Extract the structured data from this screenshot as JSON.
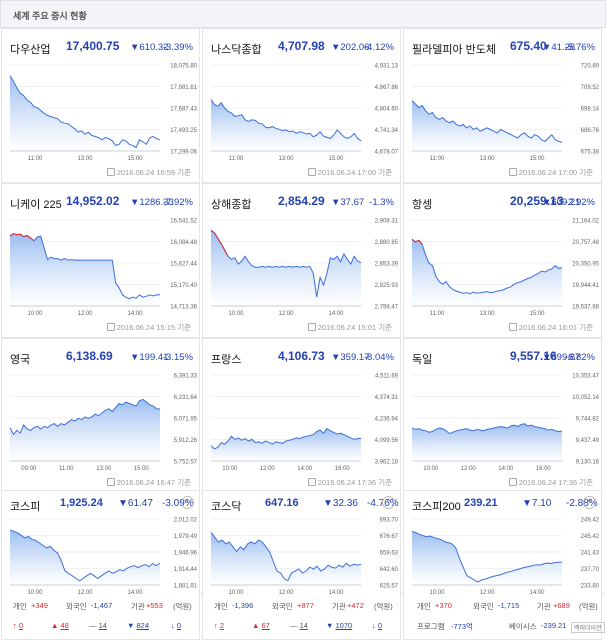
{
  "page_title": "세계 주요 증시 현황",
  "world_indices": [
    {
      "name": "다우산업",
      "price": "17,400.75",
      "change": "▼610.32",
      "rate": "-3.39%",
      "yticks": [
        "18,075.80",
        "17,881.61",
        "17,687.43",
        "17,493.25",
        "17,299.06"
      ],
      "xticks": [
        "11:00",
        "13:00",
        "15:00"
      ],
      "stamp": "2016.06.24 16:59 기준",
      "series": [
        17980,
        17930,
        17870,
        17820,
        17800,
        17760,
        17740,
        17700,
        17690,
        17665,
        17640,
        17620,
        17610,
        17600,
        17590,
        17560,
        17550,
        17545,
        17520,
        17500,
        17470,
        17480,
        17450,
        17470,
        17440,
        17430,
        17420,
        17400,
        17420,
        17410,
        17390,
        17350,
        17360,
        17400,
        17390,
        17360,
        17350,
        17330,
        17400,
        17380,
        17360,
        17420,
        17430,
        17410,
        17400
      ],
      "ylim": [
        17299.06,
        18075.8
      ]
    },
    {
      "name": "나스닥종합",
      "price": "4,707.98",
      "change": "▼202.06",
      "rate": "-4.12%",
      "yticks": [
        "4,931.13",
        "4,867.86",
        "4,804.60",
        "4,741.34",
        "4,678.07"
      ],
      "xticks": [
        "11:00",
        "13:00",
        "15:00"
      ],
      "stamp": "2016.06.24 17:00 기준",
      "series": [
        4830,
        4815,
        4810,
        4820,
        4805,
        4795,
        4790,
        4780,
        4782,
        4785,
        4770,
        4765,
        4770,
        4768,
        4760,
        4758,
        4748,
        4746,
        4750,
        4745,
        4742,
        4738,
        4740,
        4735,
        4737,
        4730,
        4735,
        4732,
        4728,
        4730,
        4720,
        4725,
        4735,
        4722,
        4718,
        4715,
        4725,
        4740,
        4730,
        4720,
        4715,
        4720,
        4730,
        4715,
        4708
      ],
      "ylim": [
        4678.07,
        4931.13
      ]
    },
    {
      "name": "필라델피아 반도체",
      "price": "675.40",
      "change": "▼41.28",
      "rate": "-5.76%",
      "yticks": [
        "720.89",
        "709.52",
        "698.14",
        "686.76",
        "675.38"
      ],
      "xticks": [
        "11:00",
        "13:00",
        "15:00"
      ],
      "stamp": "2016.06.24 17:00 기준",
      "series": [
        700,
        698,
        696,
        697,
        694,
        692,
        693,
        690,
        689,
        690,
        688,
        687,
        688,
        686,
        685,
        686,
        684,
        685,
        683,
        684,
        682,
        683,
        684,
        683,
        682,
        681,
        683,
        682,
        681,
        680,
        679,
        678,
        680,
        681,
        679,
        678,
        680,
        679,
        677,
        676,
        678,
        680,
        677,
        676,
        675.4
      ],
      "ylim": [
        670.35,
        720.89
      ]
    },
    {
      "name": "니케이 225",
      "price": "14,952.02",
      "change": "▼1286.33",
      "rate": "-7.92%",
      "yticks": [
        "16,541.52",
        "16,084.48",
        "15,627.44",
        "15,170.40",
        "14,713.36"
      ],
      "xticks": [
        "10:00",
        "12:00",
        "14:00"
      ],
      "stamp": "2016.06.24 15:15 기준",
      "series": [
        16200,
        16250,
        16230,
        16240,
        16190,
        16210,
        16160,
        16100,
        16180,
        16200,
        15950,
        15700,
        15750,
        15720,
        15720,
        15690,
        15720,
        15690,
        15700,
        15690,
        15690,
        15690,
        15690,
        15690,
        15690,
        15690,
        15690,
        15690,
        15690,
        15690,
        15690,
        15200,
        15100,
        14950,
        14900,
        14870,
        14900,
        14880,
        14950,
        14900,
        14920,
        14950,
        14930,
        14950,
        14952
      ],
      "ylim": [
        14713.36,
        16541.52
      ]
    },
    {
      "name": "상해종합",
      "price": "2,854.29",
      "change": "▼37.67",
      "rate": "-1.3%",
      "yticks": [
        "2,908.31",
        "2,880.85",
        "2,853.39",
        "2,825.93",
        "2,798.47"
      ],
      "xticks": [
        "10:00",
        "12:00",
        "14:00"
      ],
      "stamp": "2016.06.24 15:01 기준",
      "series": [
        2895,
        2892,
        2885,
        2878,
        2870,
        2862,
        2858,
        2860,
        2852,
        2856,
        2862,
        2855,
        2850,
        2848,
        2848,
        2849,
        2848,
        2849,
        2848,
        2849,
        2848,
        2849,
        2848,
        2849,
        2848,
        2849,
        2848,
        2849,
        2848,
        2849,
        2840,
        2810,
        2835,
        2825,
        2840,
        2860,
        2858,
        2862,
        2855,
        2865,
        2858,
        2852,
        2862,
        2856,
        2854
      ],
      "ylim": [
        2798.47,
        2908.31
      ]
    },
    {
      "name": "항셍",
      "price": "20,259.13",
      "change": "▼609.21",
      "rate": "-2.92%",
      "yticks": [
        "21,164.02",
        "20,757.48",
        "20,350.95",
        "19,944.41",
        "19,537.88"
      ],
      "xticks": [
        "11:00",
        "13:00",
        "15:00"
      ],
      "stamp": "2016.06.24 16:01 기준",
      "series": [
        20800,
        20750,
        20780,
        20700,
        20500,
        20350,
        20300,
        20100,
        20000,
        19950,
        20000,
        19900,
        19850,
        19820,
        19800,
        19780,
        19790,
        19770,
        19800,
        19780,
        19790,
        19800,
        19810,
        19790,
        19800,
        19820,
        19830,
        19850,
        19880,
        19900,
        19950,
        19980,
        20000,
        20030,
        20060,
        20080,
        20120,
        20150,
        20200,
        20180,
        20220,
        20240,
        20300,
        20250,
        20260
      ],
      "ylim": [
        19537.88,
        21164.02
      ]
    },
    {
      "name": "영국",
      "price": "6,138.69",
      "change": "▼199.41",
      "rate": "-3.15%",
      "yticks": [
        "6,391.33",
        "6,231.64",
        "6,071.95",
        "5,912.26",
        "5,752.57"
      ],
      "xticks": [
        "09:00",
        "11:00",
        "13:00",
        "15:00"
      ],
      "stamp": "2016.06.24 16:47 기준",
      "series": [
        6000,
        5950,
        5980,
        5960,
        6020,
        5990,
        5980,
        6000,
        6010,
        5990,
        6010,
        6000,
        6020,
        6030,
        6010,
        6030,
        6020,
        6040,
        6060,
        6050,
        6070,
        6060,
        6080,
        6070,
        6080,
        6100,
        6090,
        6110,
        6130,
        6140,
        6120,
        6150,
        6180,
        6170,
        6190,
        6180,
        6170,
        6160,
        6200,
        6210,
        6190,
        6170,
        6160,
        6140,
        6139
      ],
      "ylim": [
        5752.57,
        6391.33
      ]
    },
    {
      "name": "프랑스",
      "price": "4,106.73",
      "change": "▼359.17",
      "rate": "-8.04%",
      "yticks": [
        "4,511.69",
        "4,374.31",
        "4,236.94",
        "4,099.56",
        "3,962.18"
      ],
      "xticks": [
        "10:00",
        "12:00",
        "14:00",
        "16:00"
      ],
      "stamp": "2016.06.24 17:36 기준",
      "series": [
        4060,
        4040,
        4050,
        4080,
        4070,
        4090,
        4120,
        4100,
        4110,
        4095,
        4105,
        4090,
        4100,
        4080,
        4085,
        4075,
        4090,
        4080,
        4070,
        4085,
        4080,
        4075,
        4090,
        4095,
        4100,
        4110,
        4105,
        4115,
        4120,
        4125,
        4130,
        4150,
        4160,
        4140,
        4170,
        4155,
        4145,
        4135,
        4140,
        4130,
        4120,
        4110,
        4100,
        4105,
        4107
      ],
      "ylim": [
        3962.18,
        4511.69
      ]
    },
    {
      "name": "독일",
      "price": "9,557.16",
      "change": "▼699.87",
      "rate": "-6.82%",
      "yticks": [
        "10,353.47",
        "10,052.14",
        "9,744.82",
        "9,437.49",
        "9,130.16"
      ],
      "xticks": [
        "10:00",
        "12:00",
        "14:00",
        "16:00"
      ],
      "stamp": "2016.06.24 17:36 기준",
      "series": [
        9600,
        9580,
        9590,
        9570,
        9560,
        9540,
        9550,
        9580,
        9600,
        9590,
        9560,
        9520,
        9540,
        9560,
        9570,
        9580,
        9590,
        9570,
        9560,
        9580,
        9570,
        9560,
        9580,
        9590,
        9600,
        9610,
        9620,
        9610,
        9600,
        9630,
        9640,
        9620,
        9650,
        9660,
        9630,
        9640,
        9620,
        9610,
        9600,
        9590,
        9570,
        9580,
        9560,
        9550,
        9557
      ],
      "ylim": [
        9130.16,
        10353.47
      ]
    }
  ],
  "korea_indices": [
    {
      "name": "코스피",
      "price": "1,925.24",
      "change": "▼61.47",
      "rate": "-3.09%",
      "yticks": [
        "2,012.02",
        "1,979.49",
        "1,946.96",
        "1,914.44",
        "1,881.91"
      ],
      "xticks": [
        "10:00",
        "12:00",
        "14:00"
      ],
      "series": [
        1990,
        1988,
        1985,
        1980,
        1975,
        1978,
        1972,
        1970,
        1965,
        1960,
        1955,
        1958,
        1950,
        1945,
        1930,
        1910,
        1905,
        1900,
        1895,
        1890,
        1895,
        1900,
        1905,
        1900,
        1895,
        1900,
        1905,
        1910,
        1905,
        1908,
        1912,
        1910,
        1915,
        1918,
        1920,
        1916,
        1920,
        1922,
        1918,
        1924,
        1920,
        1925
      ],
      "ylim": [
        1881.91,
        2012.02
      ]
    },
    {
      "name": "코스닥",
      "price": "647.16",
      "change": "▼32.36",
      "rate": "-4.76%",
      "yticks": [
        "693.70",
        "676.67",
        "659.63",
        "642.60",
        "625.57"
      ],
      "xticks": [
        "10:00",
        "12:00",
        "14:00"
      ],
      "series": [
        680,
        675,
        670,
        672,
        668,
        670,
        665,
        660,
        665,
        662,
        668,
        670,
        668,
        672,
        670,
        665,
        660,
        650,
        640,
        638,
        632,
        630,
        638,
        640,
        642,
        638,
        640,
        644,
        642,
        645,
        640,
        642,
        646,
        644,
        643,
        646,
        644,
        648,
        645,
        647,
        646,
        647
      ],
      "ylim": [
        625.57,
        693.7
      ]
    },
    {
      "name": "코스피200",
      "price": "239.21",
      "change": "▼7.10",
      "rate": "-2.88%",
      "yticks": [
        "249.42",
        "245.42",
        "241.43",
        "237.70",
        "233.80"
      ],
      "xticks": [
        "10:00",
        "12:00",
        "14:00"
      ],
      "series": [
        246.5,
        246.2,
        245.8,
        245.5,
        245.2,
        245.4,
        245,
        244.8,
        244.5,
        244,
        243.8,
        243.5,
        242.5,
        240,
        238,
        236,
        235.5,
        235,
        234.5,
        235,
        235.2,
        235.5,
        235.8,
        236,
        236.2,
        236.5,
        236.8,
        237,
        237.3,
        237.5,
        237.8,
        238,
        238.2,
        238.4,
        238.6,
        238.5,
        238.8,
        239,
        238.9,
        239.1,
        239.2,
        239.21
      ],
      "ylim": [
        233.8,
        249.42
      ]
    }
  ],
  "investors": [
    {
      "personal_label": "개인",
      "personal": "+349",
      "foreign_label": "외국인",
      "foreign": "-1,467",
      "inst_label": "기관",
      "inst": "+553",
      "unit": "(억원)"
    },
    {
      "personal_label": "개인",
      "personal": "-1,396",
      "foreign_label": "외국인",
      "foreign": "+877",
      "inst_label": "기관",
      "inst": "+472",
      "unit": "(억원)"
    },
    {
      "personal_label": "개인",
      "personal": "+370",
      "foreign_label": "외국인",
      "foreign": "-1,715",
      "inst_label": "기관",
      "inst": "+689",
      "unit": "(억원)"
    }
  ],
  "updown": [
    {
      "upper": "0",
      "up": "48",
      "flat": "14",
      "down": "824",
      "lower": "0"
    },
    {
      "upper": "2",
      "up": "67",
      "flat": "14",
      "down": "1070",
      "lower": "0"
    }
  ],
  "program": {
    "label": "프로그램",
    "value": "-773억",
    "basis_label": "베이시스",
    "basis": "-239.21",
    "more": "백피더이전"
  },
  "colors": {
    "down": "#2541b2",
    "up": "#e0242b",
    "line": "#3d6fd9",
    "fill": "#8fb6ef"
  }
}
